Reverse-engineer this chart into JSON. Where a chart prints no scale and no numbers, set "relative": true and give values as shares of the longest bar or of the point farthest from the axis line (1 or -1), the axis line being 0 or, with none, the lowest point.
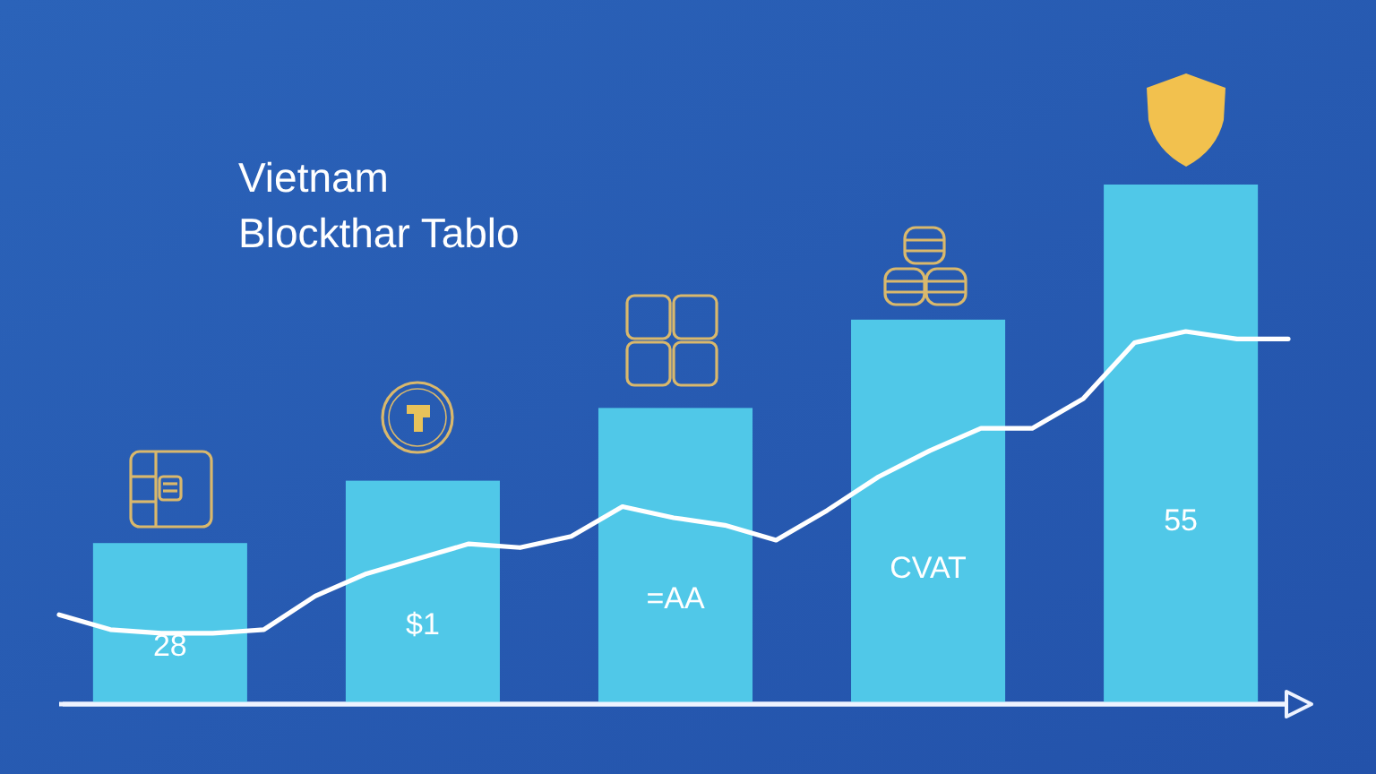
{
  "chart_data": [
    {
      "type": "bar",
      "title": "Vietnam\nBlockthar Tablo",
      "categories": [
        null,
        null,
        null,
        null,
        null
      ],
      "relative": true,
      "series": [
        {
          "color": "#50c8e8",
          "values": [
            0.31,
            0.43,
            0.57,
            0.74,
            1
          ]
        }
      ],
      "annotations": [
        "28",
        "$1",
        "=AA",
        "CVAT",
        "55"
      ]
    },
    {
      "type": "line",
      "categories": [
        null,
        null,
        null,
        null,
        null,
        null,
        null,
        null,
        null,
        null,
        null,
        null,
        null,
        null,
        null,
        null,
        null,
        null,
        null,
        null,
        null,
        null,
        null,
        null,
        null
      ],
      "relative": true,
      "series": [
        {
          "color": "#ffffff",
          "values": [
            0.24,
            0.2,
            0.19,
            0.19,
            0.2,
            0.29,
            0.35,
            0.39,
            0.43,
            0.42,
            0.45,
            0.53,
            0.5,
            0.48,
            0.44,
            0.52,
            0.61,
            0.68,
            0.74,
            0.74,
            0.82,
            0.97,
            1,
            0.98,
            0.98
          ]
        }
      ]
    }
  ]
}
